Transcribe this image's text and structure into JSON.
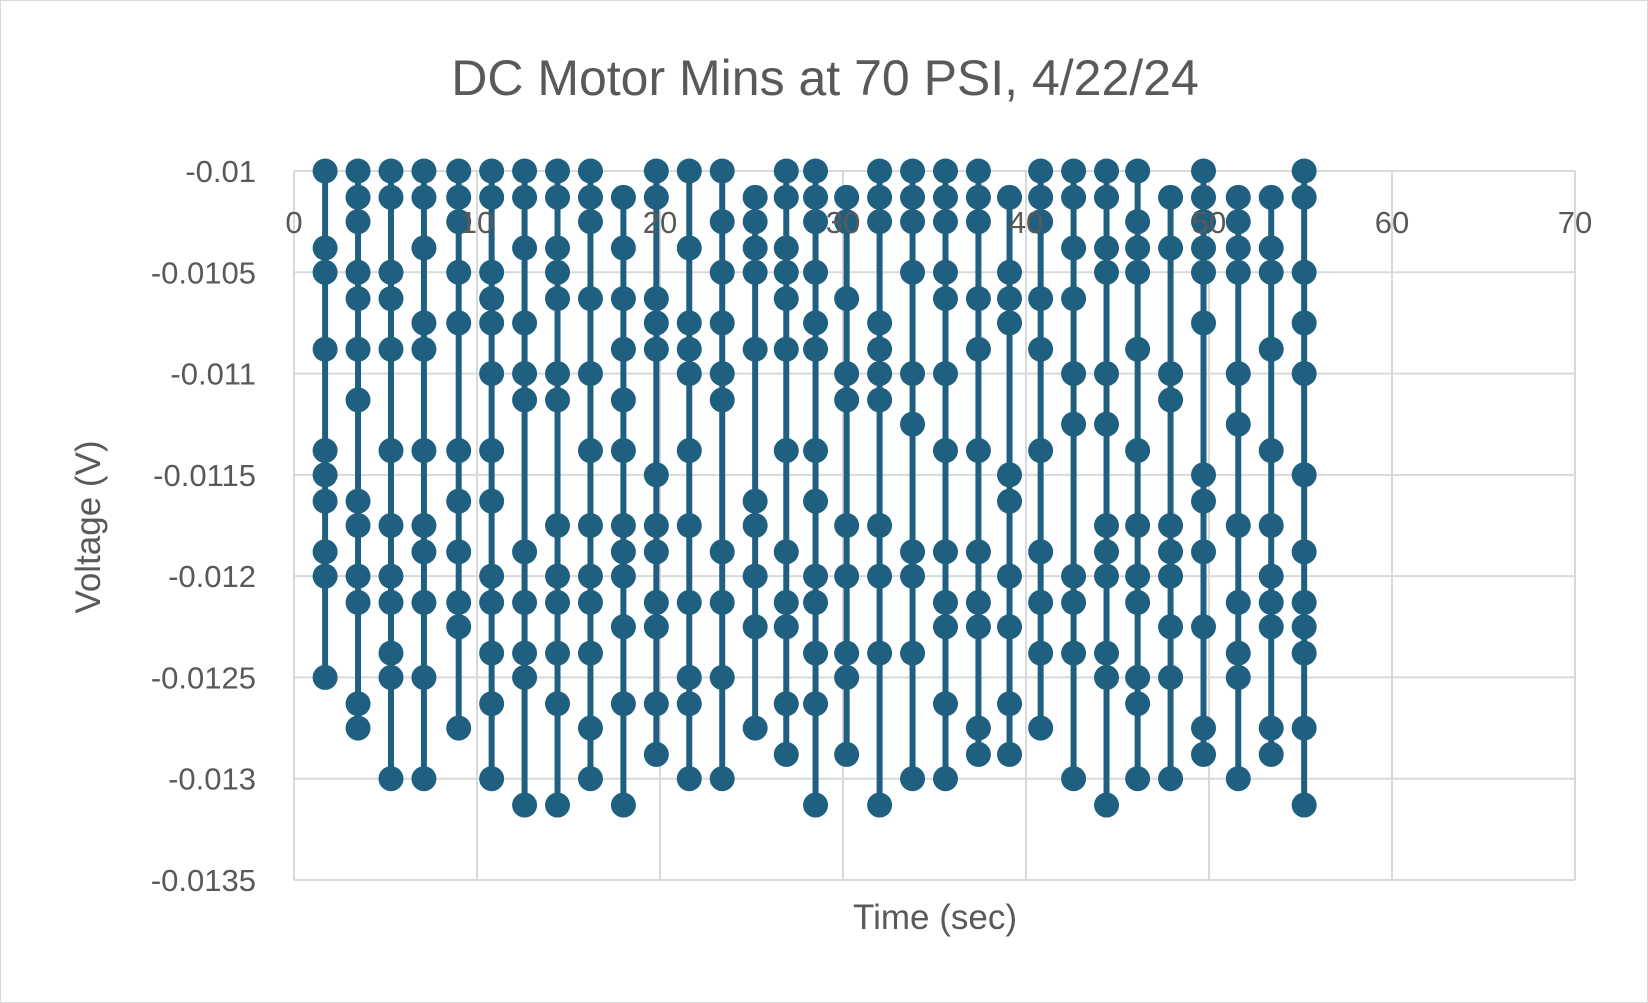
{
  "chart_data": {
    "type": "scatter",
    "title": "DC Motor Mins at 70 PSI, 4/22/24",
    "xlabel": "Time (sec)",
    "ylabel": "Voltage (V)",
    "xlim": [
      0,
      70
    ],
    "ylim": [
      -0.0135,
      -0.01
    ],
    "x_ticks": [
      "0",
      "10",
      "20",
      "30",
      "40",
      "50",
      "60",
      "70"
    ],
    "y_ticks": [
      "-0.01",
      "-0.0105",
      "-0.011",
      "-0.0115",
      "-0.012",
      "-0.0125",
      "-0.013",
      "-0.0135"
    ],
    "grid": true,
    "legend": "none",
    "series_color": "#1f5f7f",
    "series": [
      {
        "stems": [
          {
            "x": 1.7,
            "values": [
              -0.01,
              -0.01038,
              -0.0105,
              -0.01088,
              -0.01138,
              -0.0115,
              -0.01163,
              -0.01188,
              -0.012,
              -0.0125
            ]
          },
          {
            "x": 3.5,
            "values": [
              -0.01,
              -0.01013,
              -0.01025,
              -0.0105,
              -0.01063,
              -0.01088,
              -0.01113,
              -0.01163,
              -0.01175,
              -0.012,
              -0.01213,
              -0.01263,
              -0.01275
            ]
          },
          {
            "x": 5.3,
            "values": [
              -0.01,
              -0.01013,
              -0.0105,
              -0.01063,
              -0.01088,
              -0.01138,
              -0.01175,
              -0.012,
              -0.01213,
              -0.01238,
              -0.0125,
              -0.013
            ]
          },
          {
            "x": 7.1,
            "values": [
              -0.01,
              -0.01013,
              -0.01038,
              -0.01075,
              -0.01088,
              -0.01138,
              -0.01175,
              -0.01188,
              -0.01213,
              -0.0125,
              -0.013
            ]
          },
          {
            "x": 9.0,
            "values": [
              -0.01,
              -0.01013,
              -0.01025,
              -0.0105,
              -0.01075,
              -0.01138,
              -0.01163,
              -0.01188,
              -0.01213,
              -0.01225,
              -0.01275
            ]
          },
          {
            "x": 10.8,
            "values": [
              -0.01,
              -0.01013,
              -0.0105,
              -0.01063,
              -0.01075,
              -0.011,
              -0.01138,
              -0.01163,
              -0.012,
              -0.01213,
              -0.01238,
              -0.01263,
              -0.013
            ]
          },
          {
            "x": 12.6,
            "values": [
              -0.01,
              -0.01013,
              -0.01038,
              -0.01075,
              -0.011,
              -0.01113,
              -0.01188,
              -0.01213,
              -0.01238,
              -0.0125,
              -0.01313
            ]
          },
          {
            "x": 14.4,
            "values": [
              -0.01,
              -0.01013,
              -0.01038,
              -0.0105,
              -0.01063,
              -0.011,
              -0.01113,
              -0.01175,
              -0.012,
              -0.01213,
              -0.01238,
              -0.01263,
              -0.01313
            ]
          },
          {
            "x": 16.2,
            "values": [
              -0.01,
              -0.01013,
              -0.01025,
              -0.01063,
              -0.011,
              -0.01138,
              -0.01175,
              -0.012,
              -0.01213,
              -0.01238,
              -0.01275,
              -0.013
            ]
          },
          {
            "x": 18.0,
            "values": [
              -0.01013,
              -0.01038,
              -0.01063,
              -0.01088,
              -0.01113,
              -0.01138,
              -0.01175,
              -0.01188,
              -0.012,
              -0.01225,
              -0.01263,
              -0.01313
            ]
          },
          {
            "x": 19.8,
            "values": [
              -0.01,
              -0.01013,
              -0.01063,
              -0.01075,
              -0.01088,
              -0.0115,
              -0.01175,
              -0.01188,
              -0.01213,
              -0.01225,
              -0.01263,
              -0.01288
            ]
          },
          {
            "x": 21.6,
            "values": [
              -0.01,
              -0.01038,
              -0.01075,
              -0.01088,
              -0.011,
              -0.01138,
              -0.01175,
              -0.01213,
              -0.0125,
              -0.01263,
              -0.013
            ]
          },
          {
            "x": 23.4,
            "values": [
              -0.01,
              -0.01025,
              -0.0105,
              -0.01075,
              -0.011,
              -0.01113,
              -0.01188,
              -0.01213,
              -0.0125,
              -0.013
            ]
          },
          {
            "x": 25.2,
            "values": [
              -0.01013,
              -0.01025,
              -0.01038,
              -0.0105,
              -0.01088,
              -0.01163,
              -0.01175,
              -0.012,
              -0.01225,
              -0.01275
            ]
          },
          {
            "x": 26.9,
            "values": [
              -0.01,
              -0.01013,
              -0.01038,
              -0.0105,
              -0.01063,
              -0.01088,
              -0.01138,
              -0.01188,
              -0.01213,
              -0.01225,
              -0.01263,
              -0.01288
            ]
          },
          {
            "x": 28.5,
            "values": [
              -0.01,
              -0.01013,
              -0.01025,
              -0.0105,
              -0.01075,
              -0.01088,
              -0.01138,
              -0.01163,
              -0.012,
              -0.01213,
              -0.01238,
              -0.01263,
              -0.01313
            ]
          },
          {
            "x": 30.2,
            "values": [
              -0.01013,
              -0.01025,
              -0.01063,
              -0.011,
              -0.01113,
              -0.01175,
              -0.012,
              -0.01238,
              -0.0125,
              -0.01288
            ]
          },
          {
            "x": 32.0,
            "values": [
              -0.01,
              -0.01013,
              -0.01025,
              -0.01075,
              -0.01088,
              -0.011,
              -0.01113,
              -0.01175,
              -0.012,
              -0.01238,
              -0.01313
            ]
          },
          {
            "x": 33.8,
            "values": [
              -0.01,
              -0.01013,
              -0.01025,
              -0.0105,
              -0.011,
              -0.01125,
              -0.01188,
              -0.012,
              -0.01238,
              -0.013
            ]
          },
          {
            "x": 35.6,
            "values": [
              -0.01,
              -0.01013,
              -0.01025,
              -0.0105,
              -0.01063,
              -0.011,
              -0.01138,
              -0.01188,
              -0.01213,
              -0.01225,
              -0.01263,
              -0.013
            ]
          },
          {
            "x": 37.4,
            "values": [
              -0.01,
              -0.01013,
              -0.01025,
              -0.01063,
              -0.01088,
              -0.01138,
              -0.01188,
              -0.01213,
              -0.01225,
              -0.01275,
              -0.01288
            ]
          },
          {
            "x": 39.1,
            "values": [
              -0.01013,
              -0.0105,
              -0.01063,
              -0.01075,
              -0.0115,
              -0.01163,
              -0.012,
              -0.01225,
              -0.01263,
              -0.01288
            ]
          },
          {
            "x": 40.8,
            "values": [
              -0.01,
              -0.01013,
              -0.01025,
              -0.01063,
              -0.01088,
              -0.01138,
              -0.01188,
              -0.01213,
              -0.01238,
              -0.01275
            ]
          },
          {
            "x": 42.6,
            "values": [
              -0.01,
              -0.01013,
              -0.01038,
              -0.01063,
              -0.011,
              -0.01125,
              -0.012,
              -0.01213,
              -0.01238,
              -0.013
            ]
          },
          {
            "x": 44.4,
            "values": [
              -0.01,
              -0.01013,
              -0.01038,
              -0.0105,
              -0.011,
              -0.01125,
              -0.01175,
              -0.01188,
              -0.012,
              -0.01238,
              -0.0125,
              -0.01313
            ]
          },
          {
            "x": 46.1,
            "values": [
              -0.01,
              -0.01025,
              -0.01038,
              -0.0105,
              -0.01088,
              -0.01138,
              -0.01175,
              -0.012,
              -0.01213,
              -0.0125,
              -0.01263,
              -0.013
            ]
          },
          {
            "x": 47.9,
            "values": [
              -0.01013,
              -0.01038,
              -0.011,
              -0.01113,
              -0.01175,
              -0.01188,
              -0.012,
              -0.01225,
              -0.0125,
              -0.013
            ]
          },
          {
            "x": 49.7,
            "values": [
              -0.01,
              -0.01013,
              -0.01025,
              -0.01038,
              -0.0105,
              -0.01075,
              -0.0115,
              -0.01163,
              -0.01188,
              -0.01225,
              -0.01275,
              -0.01288
            ]
          },
          {
            "x": 51.6,
            "values": [
              -0.01013,
              -0.01025,
              -0.01038,
              -0.0105,
              -0.011,
              -0.01125,
              -0.01175,
              -0.01213,
              -0.01238,
              -0.0125,
              -0.013
            ]
          },
          {
            "x": 53.4,
            "values": [
              -0.01013,
              -0.01038,
              -0.0105,
              -0.01088,
              -0.01138,
              -0.01175,
              -0.012,
              -0.01213,
              -0.01225,
              -0.01275,
              -0.01288
            ]
          },
          {
            "x": 55.2,
            "values": [
              -0.01,
              -0.01013,
              -0.0105,
              -0.01075,
              -0.011,
              -0.0115,
              -0.01188,
              -0.01213,
              -0.01225,
              -0.01238,
              -0.01275,
              -0.01313
            ]
          }
        ]
      }
    ]
  }
}
